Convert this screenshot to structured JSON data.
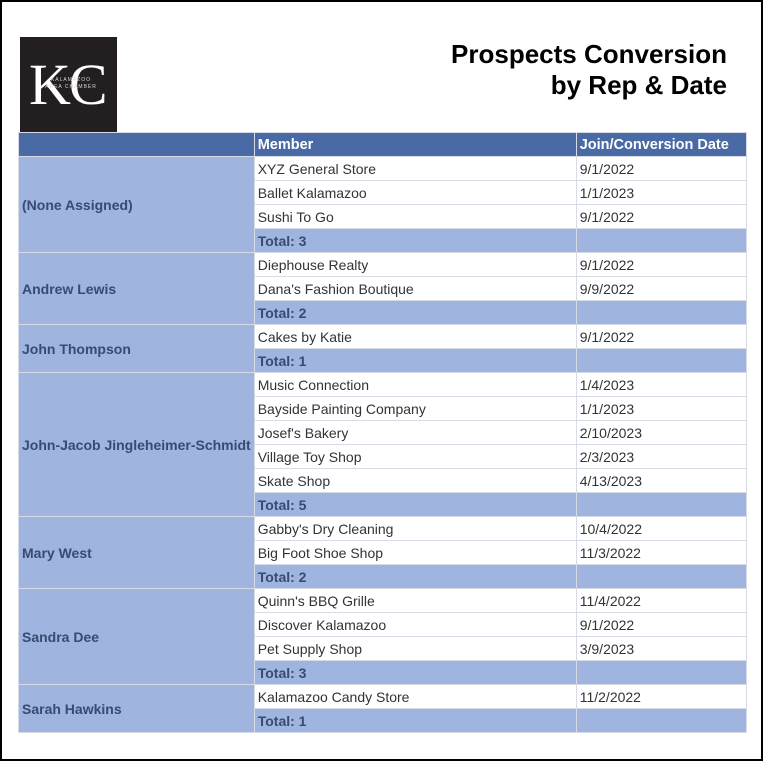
{
  "logo": {
    "letters": "KC",
    "line1": "KALAMAZOO",
    "line2": "AREA CHAMBER"
  },
  "title": {
    "line1": "Prospects Conversion",
    "line2": "by Rep & Date"
  },
  "columns": {
    "rep": "",
    "member": "Member",
    "date": "Join/Conversion Date"
  },
  "groups": [
    {
      "rep": "(None Assigned)",
      "rows": [
        {
          "member": "XYZ General Store",
          "date": "9/1/2022"
        },
        {
          "member": "Ballet Kalamazoo",
          "date": "1/1/2023"
        },
        {
          "member": "Sushi To Go",
          "date": "9/1/2022"
        }
      ],
      "total": "Total: 3"
    },
    {
      "rep": "Andrew Lewis",
      "rows": [
        {
          "member": "Diephouse Realty",
          "date": "9/1/2022"
        },
        {
          "member": "Dana's Fashion Boutique",
          "date": "9/9/2022"
        }
      ],
      "total": "Total: 2"
    },
    {
      "rep": "John Thompson",
      "rows": [
        {
          "member": "Cakes by Katie",
          "date": "9/1/2022"
        }
      ],
      "total": "Total: 1"
    },
    {
      "rep": "John-Jacob Jingleheimer-Schmidt",
      "rows": [
        {
          "member": "Music Connection",
          "date": "1/4/2023"
        },
        {
          "member": "Bayside Painting Company",
          "date": "1/1/2023"
        },
        {
          "member": "Josef's Bakery",
          "date": "2/10/2023"
        },
        {
          "member": "Village Toy Shop",
          "date": "2/3/2023"
        },
        {
          "member": "Skate Shop",
          "date": "4/13/2023"
        }
      ],
      "total": "Total: 5"
    },
    {
      "rep": "Mary West",
      "rows": [
        {
          "member": "Gabby's Dry Cleaning",
          "date": "10/4/2022"
        },
        {
          "member": "Big Foot Shoe Shop",
          "date": "11/3/2022"
        }
      ],
      "total": "Total: 2"
    },
    {
      "rep": "Sandra Dee",
      "rows": [
        {
          "member": "Quinn's BBQ Grille",
          "date": "11/4/2022"
        },
        {
          "member": "Discover Kalamazoo",
          "date": "9/1/2022"
        },
        {
          "member": "Pet Supply Shop",
          "date": "3/9/2023"
        }
      ],
      "total": "Total: 3"
    },
    {
      "rep": "Sarah Hawkins",
      "rows": [
        {
          "member": "Kalamazoo Candy Store",
          "date": "11/2/2022"
        }
      ],
      "total": "Total: 1"
    }
  ]
}
